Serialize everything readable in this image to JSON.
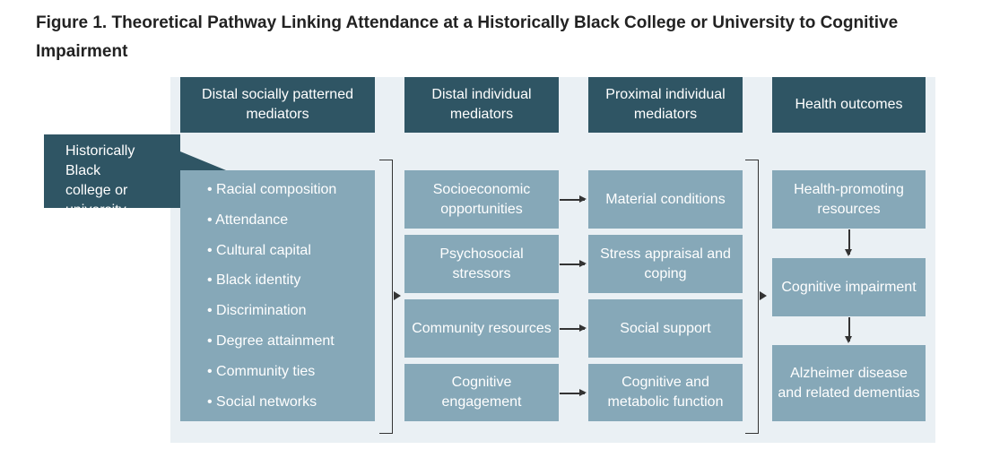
{
  "title": "Figure 1.  Theoretical Pathway Linking Attendance at a Historically Black College or University to Cognitive Impairment",
  "colors": {
    "dark": "#2f5564",
    "light": "#86a8b8",
    "panel": "#eaf0f4"
  },
  "source": "Historically Black college or university",
  "headers": [
    "Distal socially patterned mediators",
    "Distal individual mediators",
    "Proximal individual mediators",
    "Health outcomes"
  ],
  "distal_social": [
    "Racial composition",
    "Attendance",
    "Cultural capital",
    "Black identity",
    "Discrimination",
    "Degree attainment",
    "Community ties",
    "Social networks"
  ],
  "distal_individual": [
    "Socioeconomic opportunities",
    "Psychosocial stressors",
    "Community resources",
    "Cognitive engagement"
  ],
  "proximal_individual": [
    "Material conditions",
    "Stress appraisal and coping",
    "Social support",
    "Cognitive and metabolic function"
  ],
  "outcomes": [
    "Health-promoting resources",
    "Cognitive impairment",
    "Alzheimer disease and related dementias"
  ]
}
